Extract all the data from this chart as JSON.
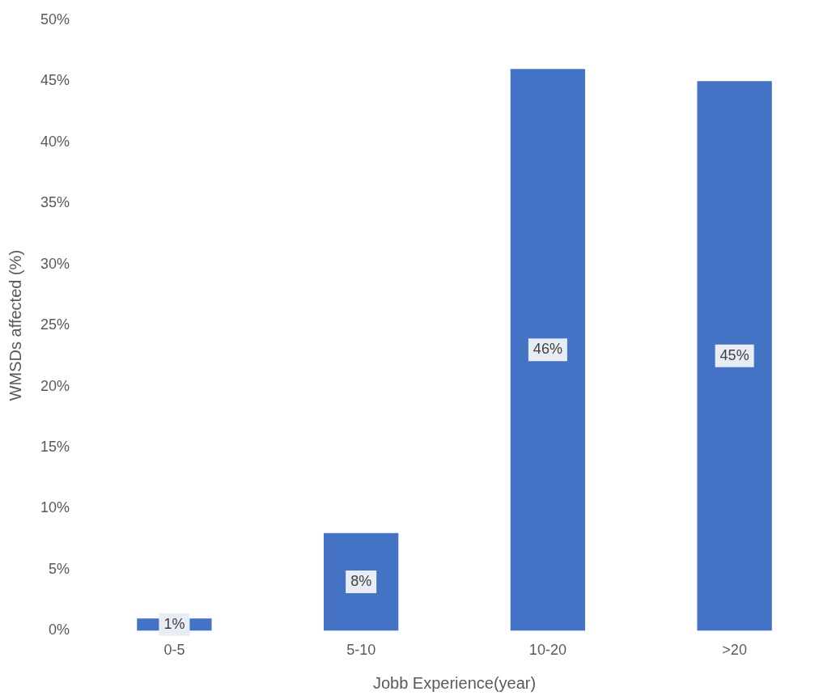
{
  "chart_data": {
    "type": "bar",
    "xlabel": "Jobb Experience(year)",
    "ylabel": "WMSDs affected (%)",
    "categories": [
      "0-5",
      "5-10",
      "10-20",
      ">20"
    ],
    "values": [
      1,
      8,
      46,
      45
    ],
    "value_labels": [
      "1%",
      "8%",
      "46%",
      "45%"
    ],
    "color": "#4472c4",
    "ylim": [
      0,
      50
    ],
    "yticks": [
      {
        "value": 0,
        "label": "0%"
      },
      {
        "value": 5,
        "label": "5%"
      },
      {
        "value": 10,
        "label": "10%"
      },
      {
        "value": 15,
        "label": "15%"
      },
      {
        "value": 20,
        "label": "20%"
      },
      {
        "value": 25,
        "label": "25%"
      },
      {
        "value": 30,
        "label": "30%"
      },
      {
        "value": 35,
        "label": "35%"
      },
      {
        "value": 40,
        "label": "40%"
      },
      {
        "value": 45,
        "label": "45%"
      },
      {
        "value": 50,
        "label": "50%"
      }
    ],
    "grid": false,
    "legend": false
  }
}
